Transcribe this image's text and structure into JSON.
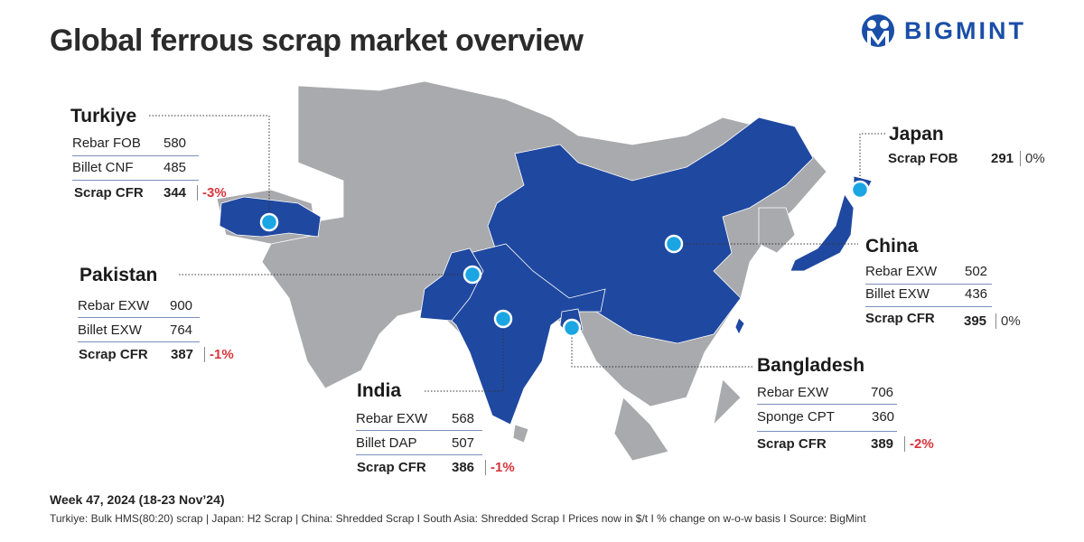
{
  "title": "Global ferrous scrap market overview",
  "logo": {
    "text": "BIGMINT"
  },
  "colors": {
    "highlight": "#1f48a0",
    "land": "#a9aaae",
    "marker": "#1ba6e3",
    "negative": "#d8343c",
    "brand": "#1a4ea8"
  },
  "regions": {
    "turkiye": {
      "name": "Turkiye",
      "rows": [
        {
          "label": "Rebar FOB",
          "value": "580"
        },
        {
          "label": "Billet CNF",
          "value": "485"
        },
        {
          "label": "Scrap CFR",
          "value": "344",
          "change": "-3%"
        }
      ]
    },
    "pakistan": {
      "name": "Pakistan",
      "rows": [
        {
          "label": "Rebar EXW",
          "value": "900"
        },
        {
          "label": "Billet EXW",
          "value": "764"
        },
        {
          "label": "Scrap CFR",
          "value": "387",
          "change": "-1%"
        }
      ]
    },
    "india": {
      "name": "India",
      "rows": [
        {
          "label": "Rebar EXW",
          "value": "568"
        },
        {
          "label": "Billet DAP",
          "value": "507"
        },
        {
          "label": "Scrap CFR",
          "value": "386",
          "change": "-1%"
        }
      ]
    },
    "bangladesh": {
      "name": "Bangladesh",
      "rows": [
        {
          "label": "Rebar EXW",
          "value": "706"
        },
        {
          "label": "Sponge CPT",
          "value": "360"
        },
        {
          "label": "Scrap CFR",
          "value": "389",
          "change": "-2%"
        }
      ]
    },
    "china": {
      "name": "China",
      "rows": [
        {
          "label": "Rebar EXW",
          "value": "502"
        },
        {
          "label": "Billet EXW",
          "value": "436"
        },
        {
          "label": "Scrap CFR",
          "value": "395",
          "change": "0%"
        }
      ]
    },
    "japan": {
      "name": "Japan",
      "rows": [
        {
          "label": "Scrap FOB",
          "value": "291",
          "change": "0%"
        }
      ]
    }
  },
  "footer": {
    "week": "Week 47, 2024 (18-23 Nov’24)",
    "note": "Turkiye: Bulk HMS(80:20) scrap | Japan: H2 Scrap | China: Shredded Scrap  I  South Asia: Shredded Scrap  I  Prices now in $/t  I  % change on w-o-w basis  I  Source: BigMint"
  }
}
